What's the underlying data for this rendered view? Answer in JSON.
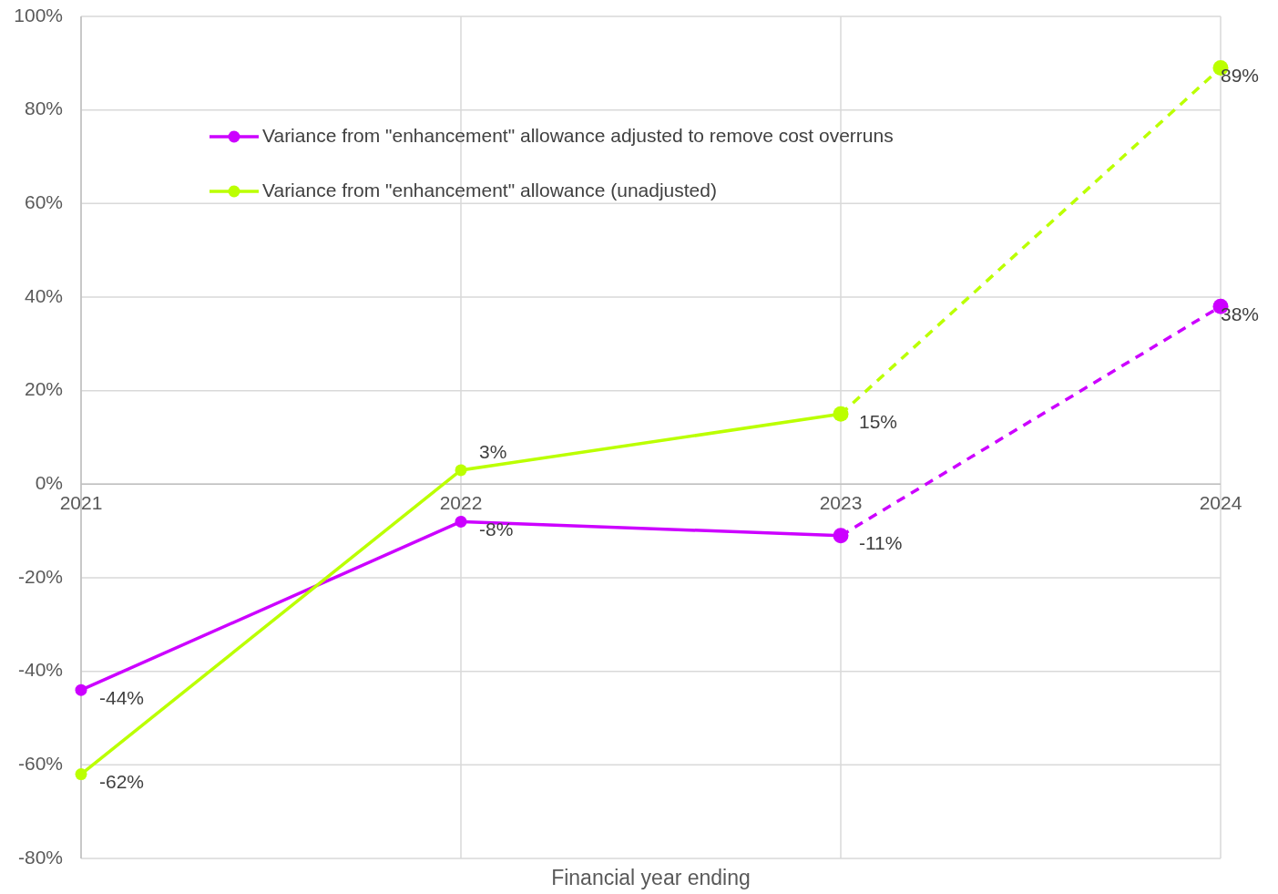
{
  "chart_data": {
    "type": "line",
    "xlabel": "Financial year ending",
    "categories": [
      "2021",
      "2022",
      "2023",
      "2024"
    ],
    "ylim": [
      -80,
      100
    ],
    "yticks": [
      {
        "value": -80,
        "label": "-80%"
      },
      {
        "value": -60,
        "label": "-60%"
      },
      {
        "value": -40,
        "label": "-40%"
      },
      {
        "value": -20,
        "label": "-20%"
      },
      {
        "value": 0,
        "label": "0%"
      },
      {
        "value": 20,
        "label": "20%"
      },
      {
        "value": 40,
        "label": "40%"
      },
      {
        "value": 60,
        "label": "60%"
      },
      {
        "value": 80,
        "label": "80%"
      },
      {
        "value": 100,
        "label": "100%"
      }
    ],
    "grid": true,
    "legend": "top left",
    "marker": "circle",
    "series": [
      {
        "name": "Variance from \"enhancement\" allowance adjusted to remove cost overruns",
        "color": "#cc00ff",
        "values": [
          -44,
          -8,
          -11,
          null
        ],
        "value_labels": [
          "-44%",
          "-8%",
          "-11%",
          null
        ],
        "line_style": "solid"
      },
      {
        "name": "Variance from \"enhancement\" allowance (unadjusted)",
        "color": "#bbff00",
        "values": [
          -62,
          3,
          15,
          null
        ],
        "value_labels": [
          "-62%",
          "3%",
          "15%",
          null
        ],
        "line_style": "solid"
      },
      {
        "color": "#cc00ff",
        "values": [
          null,
          null,
          -11,
          38
        ],
        "value_labels": [
          null,
          null,
          null,
          "38%"
        ],
        "line_style": "dashed"
      },
      {
        "color": "#bbff00",
        "values": [
          null,
          null,
          15,
          89
        ],
        "value_labels": [
          null,
          null,
          null,
          "89%"
        ],
        "line_style": "dashed"
      }
    ]
  }
}
